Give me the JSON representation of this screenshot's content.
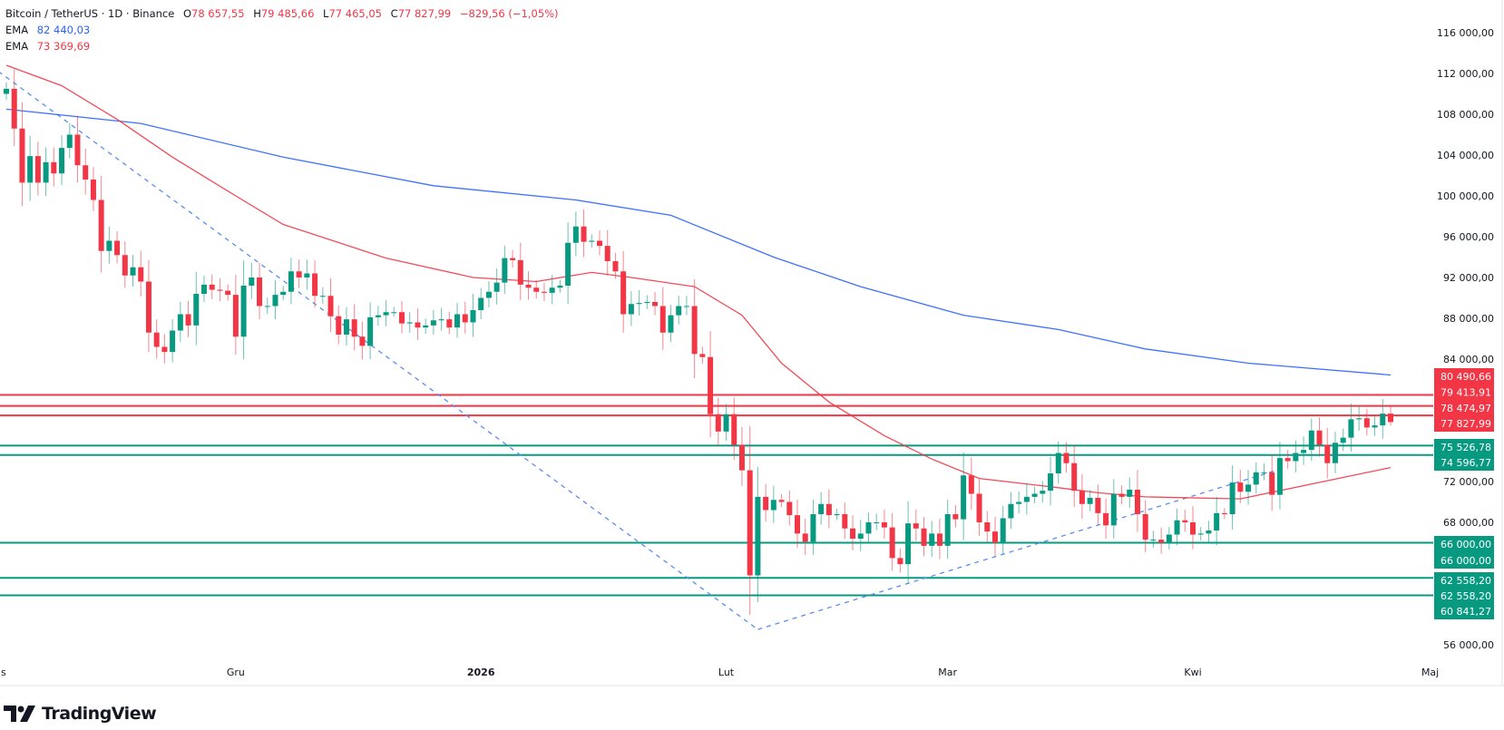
{
  "header": {
    "symbol": "Bitcoin / TetherUS · 1D · Binance",
    "o_label": "O",
    "o": "78 657,55",
    "h_label": "H",
    "h": "79 485,66",
    "l_label": "L",
    "l": "77 465,05",
    "c_label": "C",
    "c": "77 827,99",
    "change": "−829,56 (−1,05%)",
    "ema1_label": "EMA",
    "ema1_value": "82 440,03",
    "ema2_label": "EMA",
    "ema2_value": "73 369,69"
  },
  "brand": "TradingView",
  "colors": {
    "up": "#089981",
    "down": "#f23645",
    "ema_blue": "#2962ff",
    "ema_red": "#f23645",
    "trendline": "#5b8def"
  },
  "chart_data": {
    "type": "candlestick",
    "interval": "1D",
    "first_date": "2025-11-02",
    "first_open": 110000,
    "closes": [
      110500,
      106600,
      101300,
      103900,
      101300,
      103300,
      102200,
      104700,
      106000,
      103000,
      101600,
      99600,
      94600,
      95600,
      94200,
      92200,
      93000,
      91600,
      86600,
      85200,
      84700,
      86800,
      88400,
      87300,
      90400,
      91300,
      90800,
      90700,
      90300,
      86200,
      91200,
      92000,
      89200,
      89200,
      90300,
      90600,
      92600,
      92000,
      92400,
      90200,
      90200,
      88200,
      86400,
      87900,
      86200,
      85300,
      88100,
      88300,
      88600,
      88600,
      87500,
      87600,
      87100,
      87300,
      87800,
      87900,
      87100,
      88400,
      87600,
      88800,
      90000,
      90600,
      91500,
      93900,
      93700,
      91300,
      91000,
      90600,
      90500,
      91000,
      91200,
      95400,
      97000,
      95500,
      95600,
      95100,
      93600,
      92600,
      88400,
      89400,
      89500,
      89600,
      89200,
      86600,
      88300,
      89200,
      89200,
      84500,
      84200,
      78600,
      76900,
      78600,
      75600,
      73100,
      62800,
      70500,
      69200,
      70200,
      70000,
      68700,
      66900,
      66100,
      68800,
      69800,
      68700,
      68800,
      67400,
      66400,
      66900,
      68000,
      68000,
      67500,
      64500,
      63900,
      67900,
      67400,
      65700,
      66900,
      65700,
      68800,
      68300,
      72600,
      70800,
      68000,
      67100,
      66000,
      68400,
      69800,
      70000,
      70500,
      70800,
      71100,
      72800,
      74800,
      73800,
      71100,
      69800,
      70400,
      68900,
      67700,
      70800,
      70500,
      71200,
      68800,
      66300,
      66300,
      66000,
      66800,
      68200,
      68000,
      66800,
      66900,
      67200,
      68900,
      68800,
      71900,
      71000,
      71700,
      72900,
      72900,
      70700,
      74300,
      74000,
      74800,
      75100,
      77000,
      75600,
      73800,
      75800,
      76300,
      78100,
      78200,
      77300,
      77500,
      78657.55,
      77827.99
    ],
    "last_candle": {
      "open": 78657.55,
      "high": 79485.66,
      "low": 77465.05,
      "close": 77827.99
    },
    "ema_series": [
      {
        "name": "EMA",
        "color": "#2962ff",
        "value": 82440.03,
        "points": [
          [
            "2025-11-02",
            108500
          ],
          [
            "2025-11-19",
            107100
          ],
          [
            "2025-12-07",
            103800
          ],
          [
            "2025-12-26",
            101000
          ],
          [
            "2026-01-13",
            99600
          ],
          [
            "2026-01-25",
            98100
          ],
          [
            "2026-02-07",
            94000
          ],
          [
            "2026-02-18",
            91100
          ],
          [
            "2026-03-03",
            88300
          ],
          [
            "2026-03-15",
            86900
          ],
          [
            "2026-03-26",
            85000
          ],
          [
            "2026-04-08",
            83600
          ],
          [
            "2026-04-26",
            82440.03
          ]
        ]
      },
      {
        "name": "EMA",
        "color": "#f23645",
        "value": 73369.69,
        "points": [
          [
            "2025-11-02",
            112800
          ],
          [
            "2025-11-09",
            110800
          ],
          [
            "2025-11-16",
            107500
          ],
          [
            "2025-11-23",
            103800
          ],
          [
            "2025-12-01",
            100000
          ],
          [
            "2025-12-07",
            97200
          ],
          [
            "2025-12-20",
            93900
          ],
          [
            "2025-12-31",
            92000
          ],
          [
            "2026-01-08",
            91600
          ],
          [
            "2026-01-15",
            92500
          ],
          [
            "2026-01-20",
            92000
          ],
          [
            "2026-01-28",
            91100
          ],
          [
            "2026-02-03",
            88300
          ],
          [
            "2026-02-08",
            83600
          ],
          [
            "2026-02-14",
            79800
          ],
          [
            "2026-02-21",
            76500
          ],
          [
            "2026-02-27",
            74200
          ],
          [
            "2026-03-05",
            72300
          ],
          [
            "2026-03-15",
            71400
          ],
          [
            "2026-03-20",
            70900
          ],
          [
            "2026-03-26",
            70500
          ],
          [
            "2026-04-07",
            70300
          ],
          [
            "2026-04-26",
            73369.69
          ]
        ]
      }
    ],
    "trendlines": [
      {
        "from": [
          "2025-11-01",
          112200
        ],
        "to": [
          "2026-02-05",
          57500
        ]
      },
      {
        "from": [
          "2026-02-05",
          57500
        ],
        "to": [
          "2026-04-12",
          73200
        ]
      }
    ],
    "horizontal_levels": [
      {
        "price": 80490.66,
        "label": "80 490,66",
        "color": "#f23645",
        "line": true
      },
      {
        "price": 79413.91,
        "label": "79 413,91",
        "color": "#f23645",
        "line": true
      },
      {
        "price": 78474.97,
        "label": "78 474,97",
        "color": "#f23645",
        "line": true
      },
      {
        "price": 77827.99,
        "label": "77 827,99",
        "color": "#f23645",
        "line": false
      },
      {
        "price": 75526.78,
        "label": "75 526,78",
        "color": "#089981",
        "line": true
      },
      {
        "price": 74596.77,
        "label": "74 596,77",
        "color": "#089981",
        "line": true
      },
      {
        "price": 66000.0,
        "label": "66 000,00",
        "color": "#089981",
        "line": true
      },
      {
        "price": 66000.0,
        "label": "66 000,00",
        "color": "#089981",
        "line": false
      },
      {
        "price": 62558.2,
        "label": "62 558,20",
        "color": "#089981",
        "line": true
      },
      {
        "price": 62558.2,
        "label": "62 558,20",
        "color": "#089981",
        "line": false
      },
      {
        "price": 60841.27,
        "label": "60 841,27",
        "color": "#089981",
        "line": true
      }
    ],
    "y_ticks": [
      {
        "value": 116000,
        "label": "116 000,00"
      },
      {
        "value": 112000,
        "label": "112 000,00"
      },
      {
        "value": 108000,
        "label": "108 000,00"
      },
      {
        "value": 104000,
        "label": "104 000,00"
      },
      {
        "value": 100000,
        "label": "100 000,00"
      },
      {
        "value": 96000,
        "label": "96 000,00"
      },
      {
        "value": 92000,
        "label": "92 000,00"
      },
      {
        "value": 88000,
        "label": "88 000,00"
      },
      {
        "value": 84000,
        "label": "84 000,00"
      },
      {
        "value": 72000,
        "label": "72 000,00"
      },
      {
        "value": 68000,
        "label": "68 000,00"
      },
      {
        "value": 56000,
        "label": "56 000,00"
      }
    ],
    "x_ticks": [
      {
        "date": "2025-11-01",
        "label": "s",
        "bold": false
      },
      {
        "date": "2025-12-01",
        "label": "Gru",
        "bold": false
      },
      {
        "date": "2026-01-01",
        "label": "2026",
        "bold": true
      },
      {
        "date": "2026-02-01",
        "label": "Lut",
        "bold": false
      },
      {
        "date": "2026-03-01",
        "label": "Mar",
        "bold": false
      },
      {
        "date": "2026-04-01",
        "label": "Kwi",
        "bold": false
      },
      {
        "date": "2026-05-01",
        "label": "Maj",
        "bold": false
      }
    ],
    "ylim": [
      56000,
      116000
    ],
    "grid": false
  }
}
